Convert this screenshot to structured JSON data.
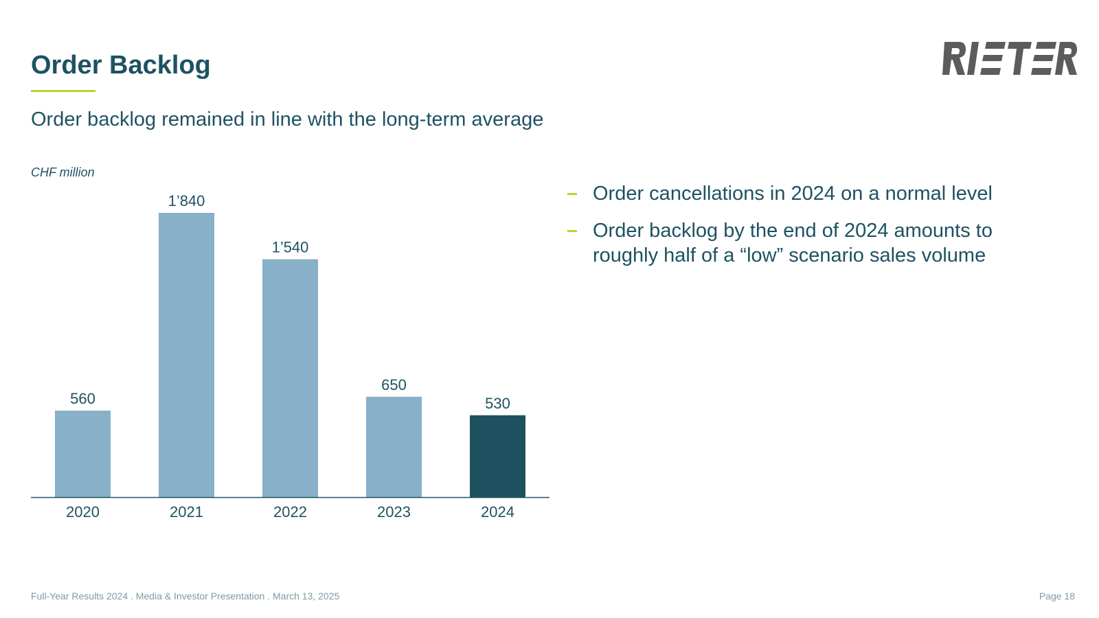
{
  "header": {
    "title": "Order Backlog",
    "subtitle": "Order backlog remained in line with the long-term average",
    "logo_text": "RIETER"
  },
  "chart_data": {
    "type": "bar",
    "unit_label": "CHF million",
    "categories": [
      "2020",
      "2021",
      "2022",
      "2023",
      "2024"
    ],
    "values": [
      560,
      1840,
      1540,
      650,
      530
    ],
    "value_labels": [
      "560",
      "1’840",
      "1’540",
      "650",
      "530"
    ],
    "highlight_index": 4,
    "colors": {
      "default": "#88b0c8",
      "highlight": "#1e5160",
      "axis": "#1d5262"
    },
    "grid": false,
    "legend": "none"
  },
  "bullets": [
    "Order cancellations in 2024 on a normal level",
    "Order backlog by the end of 2024 amounts to roughly half of a “low” scenario sales volume"
  ],
  "footer": {
    "left": "Full-Year Results 2024 . Media & Investor Presentation . March 13, 2025",
    "right": "Page 18"
  },
  "colors": {
    "primary_text": "#1d5262",
    "accent": "#c1cf2f",
    "footer_text": "#7f9aa3"
  }
}
